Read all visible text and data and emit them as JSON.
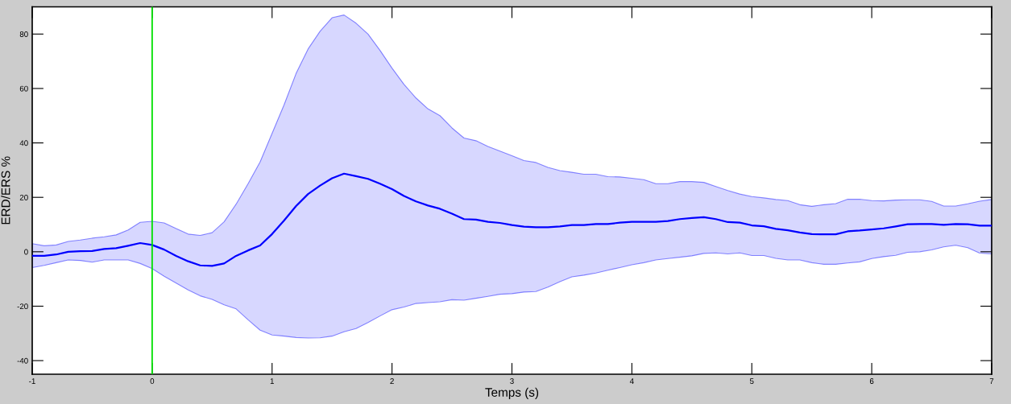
{
  "chart_data": {
    "type": "line",
    "xlabel": "Temps (s)",
    "ylabel": "ERD/ERS %",
    "x": [
      -1,
      -0.9,
      -0.8,
      -0.7,
      -0.6,
      -0.5,
      -0.4,
      -0.3,
      -0.2,
      -0.1,
      0,
      0.1,
      0.2,
      0.3,
      0.4,
      0.5,
      0.6,
      0.7,
      0.8,
      0.9,
      1,
      1.1,
      1.2,
      1.3,
      1.4,
      1.5,
      1.6,
      1.7,
      1.8,
      1.9,
      2,
      2.1,
      2.2,
      2.3,
      2.4,
      2.5,
      2.6,
      2.7,
      2.8,
      2.9,
      3,
      3.1,
      3.2,
      3.3,
      3.4,
      3.5,
      3.6,
      3.7,
      3.8,
      3.9,
      4,
      4.1,
      4.2,
      4.3,
      4.4,
      4.5,
      4.6,
      4.7,
      4.8,
      4.9,
      5,
      5.1,
      5.2,
      5.3,
      5.4,
      5.5,
      5.6,
      5.7,
      5.8,
      5.9,
      6,
      6.1,
      6.2,
      6.3,
      6.4,
      6.5,
      6.6,
      6.7,
      6.8,
      6.9,
      7
    ],
    "series": [
      {
        "color": "#0000ff",
        "values": [
          -1.5,
          -1.5,
          -1,
          0,
          0.2,
          0.3,
          1,
          1.3,
          2.2,
          3.2,
          2.5,
          0.8,
          -1.5,
          -3.5,
          -5,
          -5.2,
          -4.3,
          -1.5,
          0.5,
          2.3,
          6.5,
          11.5,
          16.8,
          21.2,
          24.3,
          27,
          28.7,
          27.8,
          26.8,
          25,
          23,
          20.5,
          18.5,
          17,
          15.8,
          14,
          12,
          11.8,
          11,
          10.6,
          9.8,
          9.2,
          9,
          9,
          9.3,
          9.8,
          9.8,
          10.2,
          10.2,
          10.7,
          11,
          11,
          11,
          11.3,
          12,
          12.4,
          12.7,
          12,
          10.9,
          10.7,
          9.7,
          9.4,
          8.4,
          7.9,
          7.1,
          6.5,
          6.4,
          6.4,
          7.5,
          7.8,
          8.2,
          8.6,
          9.3,
          10.1,
          10.2,
          10.2,
          9.9,
          10.2,
          10.1,
          9.6,
          9.6
        ],
        "upper": [
          3,
          2.2,
          2.5,
          3.8,
          4.3,
          5,
          5.5,
          6.2,
          8,
          10.8,
          11.2,
          10.6,
          8.5,
          6.5,
          6,
          7,
          11,
          17.5,
          25,
          33,
          43.5,
          54,
          65.5,
          74.5,
          81,
          86,
          87,
          84,
          80,
          74,
          67.5,
          61.5,
          56.5,
          52.5,
          50,
          45.5,
          41.8,
          40.8,
          38.7,
          37,
          35.3,
          33.5,
          32.8,
          31,
          29.8,
          29.2,
          28.5,
          28.5,
          27.6,
          27.5,
          27,
          26.5,
          25,
          25,
          25.8,
          25.8,
          25.5,
          24,
          22.5,
          21.2,
          20.3,
          19.8,
          19.2,
          18.8,
          17.3,
          16.7,
          17.3,
          17.7,
          19.3,
          19.3,
          18.8,
          18.7,
          19,
          19.1,
          19.1,
          18.5,
          16.8,
          16.8,
          17.6,
          18.6,
          19.2
        ],
        "lower": [
          -5.8,
          -5,
          -4,
          -3,
          -3.2,
          -3.8,
          -3,
          -3,
          -3,
          -4.3,
          -6.2,
          -9,
          -11.5,
          -14,
          -16.2,
          -17.5,
          -19.5,
          -21,
          -25,
          -28.8,
          -30.6,
          -31,
          -31.5,
          -31.7,
          -31.6,
          -31,
          -29.4,
          -28.2,
          -26,
          -23.6,
          -21.3,
          -20.3,
          -19,
          -18.7,
          -18.4,
          -17.6,
          -17.8,
          -17.1,
          -16.4,
          -15.6,
          -15.4,
          -14.8,
          -14.6,
          -13,
          -11,
          -9.2,
          -8.6,
          -7.8,
          -6.8,
          -5.8,
          -4.8,
          -4,
          -3,
          -2.5,
          -2,
          -1.5,
          -0.6,
          -0.4,
          -0.8,
          -0.4,
          -1.4,
          -1.4,
          -2.4,
          -3,
          -3,
          -4,
          -4.6,
          -4.6,
          -4.1,
          -3.7,
          -2.5,
          -1.8,
          -1.3,
          -0.2,
          0,
          0.7,
          1.8,
          2.4,
          1.5,
          -0.5,
          -0.8
        ]
      }
    ],
    "xlim": [
      -1,
      7
    ],
    "ylim": [
      -45,
      90
    ],
    "xticks": [
      -1,
      0,
      1,
      2,
      3,
      4,
      5,
      6,
      7
    ],
    "yticks": [
      -40,
      -20,
      0,
      20,
      40,
      60,
      80
    ],
    "ref_lines": [
      {
        "axis": "x",
        "value": 0,
        "color": "#00e000"
      }
    ],
    "grid": false,
    "legend": false
  }
}
